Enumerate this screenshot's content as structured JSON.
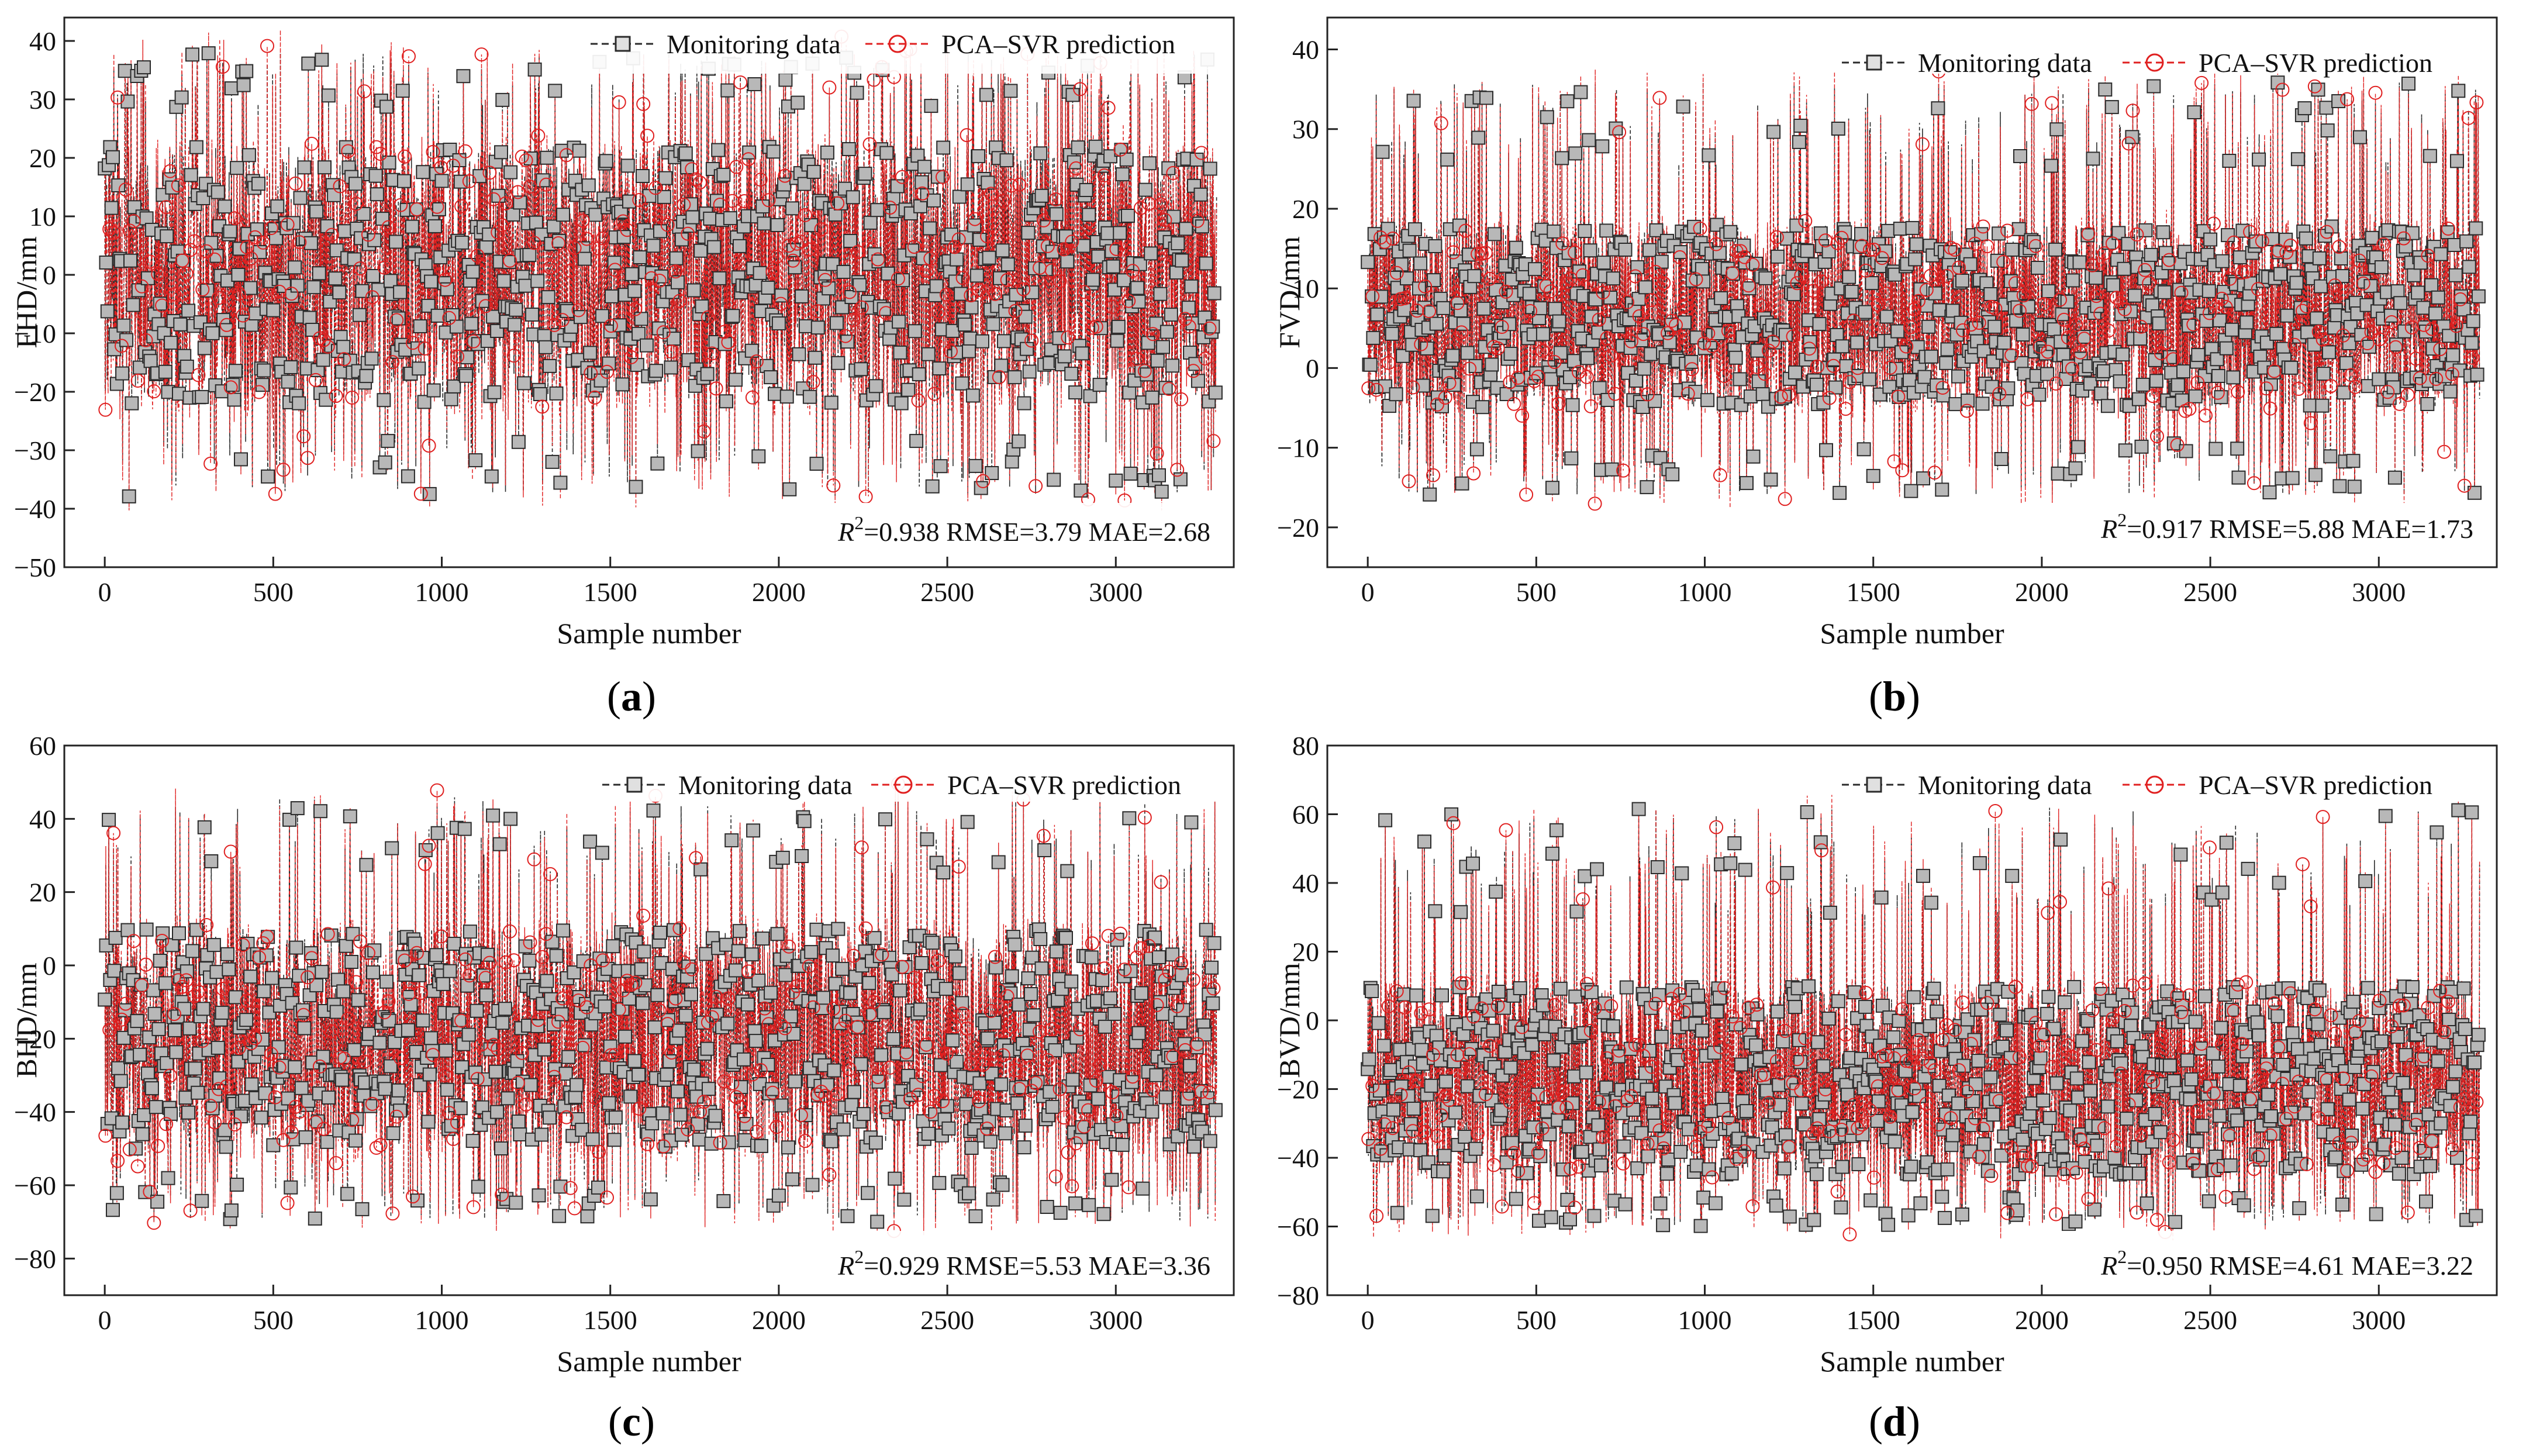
{
  "colors": {
    "monitoring": "#2b2b2b",
    "monitoring_fill": "#b8b8b8",
    "prediction": "#e02020",
    "frame": "#222222"
  },
  "chart_data": [
    {
      "id": "a",
      "type": "line",
      "caption": "a",
      "ylabel": "FHD/mm",
      "xlabel": "Sample number",
      "xlim": [
        -120,
        3350
      ],
      "ylim": [
        -50,
        44
      ],
      "xticks": [
        0,
        500,
        1000,
        1500,
        2000,
        2500,
        3000
      ],
      "xtick_labels": [
        "0",
        "500",
        "1000",
        "1500",
        "2000",
        "2500",
        "3000"
      ],
      "yticks": [
        -50,
        -40,
        -30,
        -20,
        -10,
        0,
        10,
        20,
        30,
        40
      ],
      "ytick_labels": [
        "−50",
        "−40",
        "−30",
        "−20",
        "−10",
        "0",
        "10",
        "20",
        "30",
        "40"
      ],
      "legend": [
        "Monitoring data",
        "PCA–SVR prediction"
      ],
      "metrics": {
        "r2_label": "R",
        "r2_sup": "2",
        "text": "=0.938 RMSE=3.79 MAE=2.68"
      },
      "series_summary": {
        "n": 3300,
        "center": 0,
        "typical_low": -22,
        "typical_high": 22,
        "max": 38,
        "min": -38
      }
    },
    {
      "id": "b",
      "type": "line",
      "caption": "b",
      "ylabel": "FVD/mm",
      "xlabel": "Sample number",
      "xlim": [
        -120,
        3350
      ],
      "ylim": [
        -25,
        44
      ],
      "xticks": [
        0,
        500,
        1000,
        1500,
        2000,
        2500,
        3000
      ],
      "xtick_labels": [
        "0",
        "500",
        "1000",
        "1500",
        "2000",
        "2500",
        "3000"
      ],
      "yticks": [
        -20,
        -10,
        0,
        10,
        20,
        30,
        40
      ],
      "ytick_labels": [
        "−20",
        "−10",
        "0",
        "10",
        "20",
        "30",
        "40"
      ],
      "legend": [
        "Monitoring data",
        "PCA–SVR prediction"
      ],
      "metrics": {
        "r2_label": "R",
        "r2_sup": "2",
        "text": "=0.917 RMSE=5.88 MAE=1.73"
      },
      "series_summary": {
        "n": 3300,
        "center": 4,
        "typical_low": -5,
        "typical_high": 18,
        "max": 36,
        "min": -16
      }
    },
    {
      "id": "c",
      "type": "line",
      "caption": "c",
      "ylabel": "BHD/mm",
      "xlabel": "Sample number",
      "xlim": [
        -120,
        3350
      ],
      "ylim": [
        -90,
        60
      ],
      "xticks": [
        0,
        500,
        1000,
        1500,
        2000,
        2500,
        3000
      ],
      "xtick_labels": [
        "0",
        "500",
        "1000",
        "1500",
        "2000",
        "2500",
        "3000"
      ],
      "yticks": [
        -80,
        -60,
        -40,
        -20,
        0,
        20,
        40,
        60
      ],
      "ytick_labels": [
        "−80",
        "−60",
        "−40",
        "−20",
        "0",
        "20",
        "40",
        "60"
      ],
      "legend": [
        "Monitoring data",
        "PCA–SVR prediction"
      ],
      "metrics": {
        "r2_label": "R",
        "r2_sup": "2",
        "text": "=0.929 RMSE=5.53 MAE=3.36"
      },
      "series_summary": {
        "n": 3300,
        "center": -18,
        "typical_low": -50,
        "typical_high": 10,
        "max": 46,
        "min": -70
      }
    },
    {
      "id": "d",
      "type": "line",
      "caption": "d",
      "ylabel": "BVD/mm",
      "xlabel": "Sample number",
      "xlim": [
        -120,
        3350
      ],
      "ylim": [
        -80,
        80
      ],
      "xticks": [
        0,
        500,
        1000,
        1500,
        2000,
        2500,
        3000
      ],
      "xtick_labels": [
        "0",
        "500",
        "1000",
        "1500",
        "2000",
        "2500",
        "3000"
      ],
      "yticks": [
        -80,
        -60,
        -40,
        -20,
        0,
        20,
        40,
        60,
        80
      ],
      "ytick_labels": [
        "−80",
        "−60",
        "−40",
        "−20",
        "0",
        "20",
        "40",
        "60",
        "80"
      ],
      "legend": [
        "Monitoring data",
        "PCA–SVR prediction"
      ],
      "metrics": {
        "r2_label": "R",
        "r2_sup": "2",
        "text": "=0.950 RMSE=4.61 MAE=3.22"
      },
      "series_summary": {
        "n": 3300,
        "center": -18,
        "typical_low": -45,
        "typical_high": 10,
        "max": 62,
        "min": -60
      }
    }
  ]
}
